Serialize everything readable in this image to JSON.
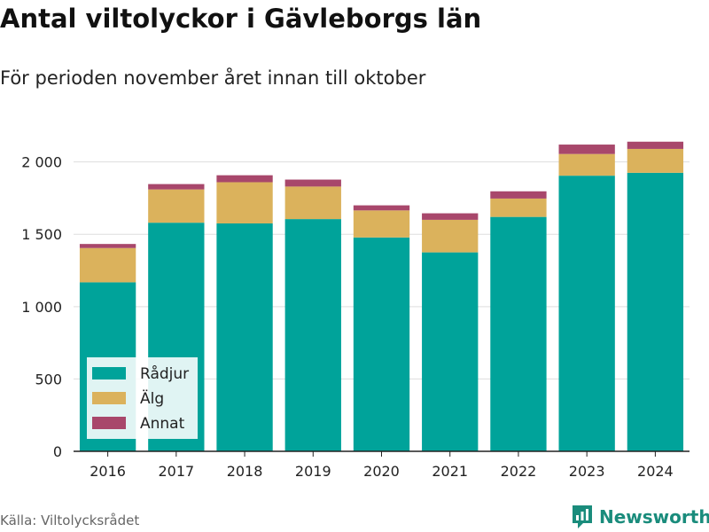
{
  "header": {
    "title": "Antal viltolyckor i Gävleborgs län",
    "subtitle": "För perioden november året innan till oktober"
  },
  "footer": {
    "source": "Källa: Viltolycksrådet",
    "brand": "Newsworthy",
    "brand_icon": "newsworthy-logo-icon"
  },
  "chart_data": {
    "type": "bar",
    "stacked": true,
    "categories": [
      "2016",
      "2017",
      "2018",
      "2019",
      "2020",
      "2021",
      "2022",
      "2023",
      "2024"
    ],
    "series": [
      {
        "name": "Rådjur",
        "color": "#00a39a",
        "values": [
          1168,
          1580,
          1575,
          1605,
          1478,
          1375,
          1620,
          1905,
          1925
        ]
      },
      {
        "name": "Älg",
        "color": "#dbb25c",
        "values": [
          237,
          230,
          285,
          225,
          187,
          225,
          127,
          150,
          165
        ]
      },
      {
        "name": "Annat",
        "color": "#a8476b",
        "values": [
          28,
          37,
          48,
          48,
          35,
          45,
          50,
          65,
          50
        ]
      }
    ],
    "ylim": [
      0,
      2200
    ],
    "yticks": [
      0,
      500,
      1000,
      1500,
      2000
    ],
    "ytick_labels": [
      "0",
      "500",
      "1 000",
      "1 500",
      "2 000"
    ],
    "grid": true,
    "legend": "bottom-left"
  }
}
